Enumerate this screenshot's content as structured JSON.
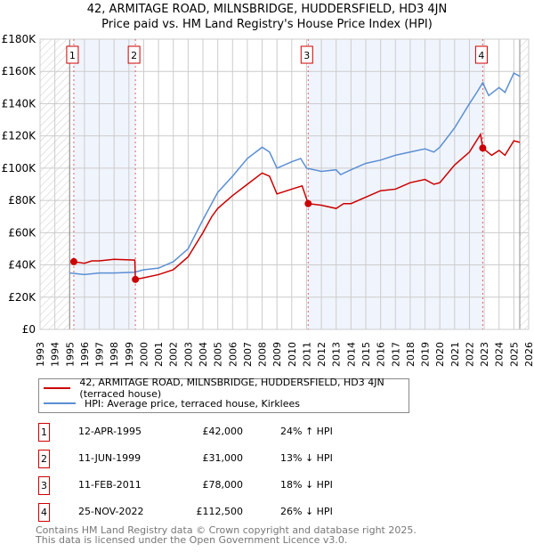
{
  "title_line1": "42, ARMITAGE ROAD, MILNSBRIDGE, HUDDERSFIELD, HD3 4JN",
  "title_line2": "Price paid vs. HM Land Registry's House Price Index (HPI)",
  "chart_data": {
    "type": "line",
    "title": "42, ARMITAGE ROAD, MILNSBRIDGE, HUDDERSFIELD, HD3 4JN — Price paid vs. HM Land Registry's House Price Index (HPI)",
    "xlim": [
      1993,
      2026
    ],
    "ylim": [
      0,
      180000
    ],
    "x_ticks": [
      "1993",
      "1994",
      "1995",
      "1996",
      "1997",
      "1998",
      "1999",
      "2000",
      "2001",
      "2002",
      "2003",
      "2004",
      "2005",
      "2006",
      "2007",
      "2008",
      "2009",
      "2010",
      "2011",
      "2012",
      "2013",
      "2014",
      "2015",
      "2016",
      "2017",
      "2018",
      "2019",
      "2020",
      "2021",
      "2022",
      "2023",
      "2024",
      "2025",
      "2026"
    ],
    "y_ticks": [
      {
        "v": 0,
        "label": "£0"
      },
      {
        "v": 20000,
        "label": "£20K"
      },
      {
        "v": 40000,
        "label": "£40K"
      },
      {
        "v": 60000,
        "label": "£60K"
      },
      {
        "v": 80000,
        "label": "£80K"
      },
      {
        "v": 100000,
        "label": "£100K"
      },
      {
        "v": 120000,
        "label": "£120K"
      },
      {
        "v": 140000,
        "label": "£140K"
      },
      {
        "v": 160000,
        "label": "£160K"
      },
      {
        "v": 180000,
        "label": "£180K"
      }
    ],
    "grid": true,
    "hatched_ranges": [
      [
        1993,
        1995
      ],
      [
        2025.4,
        2026
      ]
    ],
    "shaded_ranges": [
      [
        1995.28,
        1999.44
      ],
      [
        2011.11,
        2022.9
      ]
    ],
    "series": [
      {
        "name": "42, ARMITAGE ROAD, MILNSBRIDGE, HUDDERSFIELD, HD3 4JN (terraced house)",
        "color": "#cc0000",
        "points": [
          [
            1995.28,
            42000
          ],
          [
            1996,
            41000
          ],
          [
            1996.5,
            42500
          ],
          [
            1997,
            42500
          ],
          [
            1998,
            43500
          ],
          [
            1999.4,
            43000
          ],
          [
            1999.44,
            31000
          ],
          [
            2000,
            32000
          ],
          [
            2001,
            34000
          ],
          [
            2002,
            37000
          ],
          [
            2003,
            45000
          ],
          [
            2004,
            60000
          ],
          [
            2004.6,
            70000
          ],
          [
            2005,
            75000
          ],
          [
            2006,
            83000
          ],
          [
            2007,
            90000
          ],
          [
            2008,
            97000
          ],
          [
            2008.5,
            95000
          ],
          [
            2009,
            84000
          ],
          [
            2010,
            87000
          ],
          [
            2010.7,
            89000
          ],
          [
            2011.11,
            78000
          ],
          [
            2012,
            77000
          ],
          [
            2013,
            75000
          ],
          [
            2013.5,
            78000
          ],
          [
            2014,
            78000
          ],
          [
            2015,
            82000
          ],
          [
            2016,
            86000
          ],
          [
            2017,
            87000
          ],
          [
            2018,
            91000
          ],
          [
            2019,
            93000
          ],
          [
            2019.6,
            90000
          ],
          [
            2020,
            91000
          ],
          [
            2021,
            102000
          ],
          [
            2022,
            110000
          ],
          [
            2022.75,
            121000
          ],
          [
            2022.9,
            112500
          ],
          [
            2023.5,
            108000
          ],
          [
            2024,
            111000
          ],
          [
            2024.4,
            108000
          ],
          [
            2025,
            117000
          ],
          [
            2025.4,
            116000
          ]
        ]
      },
      {
        "name": "HPI: Average price, terraced house, Kirklees",
        "color": "#5b8fd4",
        "points": [
          [
            1995,
            35000
          ],
          [
            1996,
            34000
          ],
          [
            1997,
            35000
          ],
          [
            1998,
            35000
          ],
          [
            1999.4,
            35500
          ],
          [
            2000,
            37000
          ],
          [
            2001,
            38000
          ],
          [
            2002,
            42000
          ],
          [
            2003,
            50000
          ],
          [
            2004,
            68000
          ],
          [
            2005,
            85000
          ],
          [
            2006,
            95000
          ],
          [
            2007,
            106000
          ],
          [
            2008,
            113000
          ],
          [
            2008.5,
            110000
          ],
          [
            2009,
            100000
          ],
          [
            2010,
            104000
          ],
          [
            2010.6,
            106000
          ],
          [
            2011,
            100000
          ],
          [
            2012,
            98000
          ],
          [
            2013,
            99000
          ],
          [
            2013.3,
            96000
          ],
          [
            2014,
            99000
          ],
          [
            2015,
            103000
          ],
          [
            2016,
            105000
          ],
          [
            2017,
            108000
          ],
          [
            2018,
            110000
          ],
          [
            2019,
            112000
          ],
          [
            2019.6,
            110000
          ],
          [
            2020,
            113000
          ],
          [
            2021,
            125000
          ],
          [
            2022,
            140000
          ],
          [
            2022.5,
            147000
          ],
          [
            2022.9,
            153000
          ],
          [
            2023.3,
            145000
          ],
          [
            2024,
            150000
          ],
          [
            2024.4,
            147000
          ],
          [
            2025,
            159000
          ],
          [
            2025.4,
            157000
          ]
        ]
      }
    ],
    "sales": [
      {
        "label": "1",
        "x": 1995.28,
        "y": 42000
      },
      {
        "label": "2",
        "x": 1999.44,
        "y": 31000
      },
      {
        "label": "3",
        "x": 2011.11,
        "y": 78000
      },
      {
        "label": "4",
        "x": 2022.9,
        "y": 112500
      }
    ],
    "legend_position": "below"
  },
  "legend": {
    "red": "42, ARMITAGE ROAD, MILNSBRIDGE, HUDDERSFIELD, HD3 4JN (terraced house)",
    "blue": "HPI: Average price, terraced house, Kirklees"
  },
  "transactions": [
    {
      "num": "1",
      "date": "12-APR-1995",
      "price": "£42,000",
      "hpi": "24% ↑ HPI"
    },
    {
      "num": "2",
      "date": "11-JUN-1999",
      "price": "£31,000",
      "hpi": "13% ↓ HPI"
    },
    {
      "num": "3",
      "date": "11-FEB-2011",
      "price": "£78,000",
      "hpi": "18% ↓ HPI"
    },
    {
      "num": "4",
      "date": "25-NOV-2022",
      "price": "£112,500",
      "hpi": "26% ↓ HPI"
    }
  ],
  "footer_line1": "Contains HM Land Registry data © Crown copyright and database right 2025.",
  "footer_line2": "This data is licensed under the Open Government Licence v3.0."
}
